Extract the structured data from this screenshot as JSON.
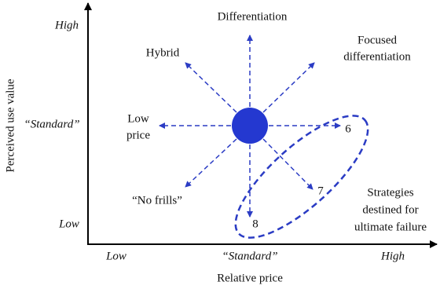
{
  "axes": {
    "y": {
      "title": "Perceived use value",
      "labels": [
        "High",
        "“Standard”",
        "Low"
      ]
    },
    "x": {
      "title": "Relative price",
      "labels": [
        "Low",
        "“Standard”",
        "High"
      ]
    }
  },
  "strategies": [
    {
      "label": [
        "Differentiation"
      ]
    },
    {
      "label": [
        "Hybrid"
      ]
    },
    {
      "label": [
        "Focused",
        "differentiation"
      ]
    },
    {
      "label": [
        "Low",
        "price"
      ]
    },
    {
      "label": [
        "“No frills”"
      ]
    },
    {
      "label": [
        "6"
      ]
    },
    {
      "label": [
        "7"
      ]
    },
    {
      "label": [
        "8"
      ]
    }
  ],
  "failure_note": [
    "Strategies",
    "destined for",
    "ultimate failure"
  ]
}
